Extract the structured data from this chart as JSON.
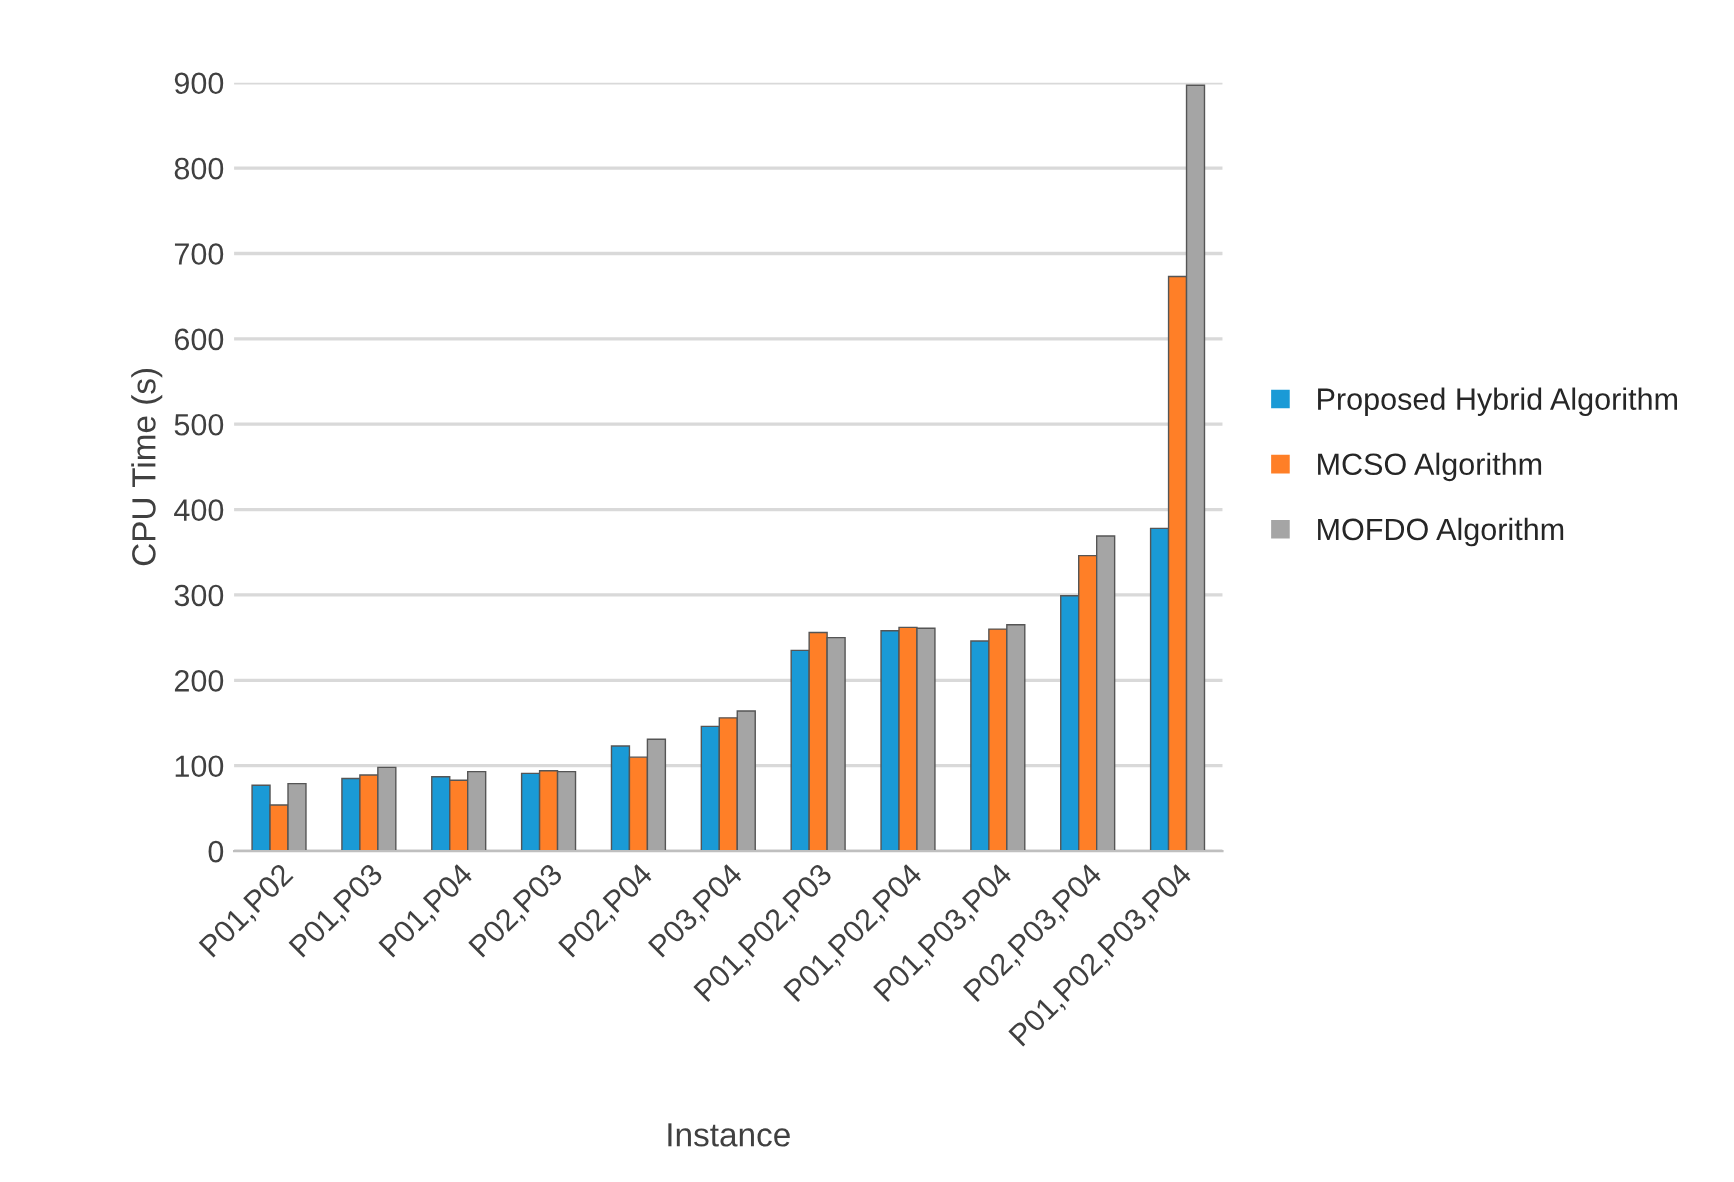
{
  "chart_data": {
    "type": "bar",
    "xlabel": "Instance",
    "ylabel": "CPU Time (s)",
    "categories": [
      "P01,P02",
      "P01,P03",
      "P01,P04",
      "P02,P03",
      "P02,P04",
      "P03,P04",
      "P01,P02,P03",
      "P01,P02,P04",
      "P01,P03,P04",
      "P02,P03,P04",
      "P01,P02,P03,P04"
    ],
    "series": [
      {
        "name": "Proposed Hybrid Algorithm",
        "color": "#1a9ad6",
        "values": [
          77,
          85,
          87,
          91,
          123,
          146,
          235,
          258,
          246,
          299,
          378
        ]
      },
      {
        "name": "MCSO Algorithm",
        "color": "#ff7f27",
        "values": [
          54,
          89,
          83,
          94,
          110,
          156,
          256,
          262,
          260,
          346,
          673
        ]
      },
      {
        "name": "MOFDO Algorithm",
        "color": "#a5a5a5",
        "values": [
          79,
          98,
          93,
          93,
          131,
          164,
          250,
          261,
          265,
          369,
          897
        ]
      }
    ],
    "ylim": [
      0,
      900
    ],
    "yticks": [
      0,
      100,
      200,
      300,
      400,
      500,
      600,
      700,
      800,
      900
    ],
    "grid": "y",
    "legend": "right"
  }
}
